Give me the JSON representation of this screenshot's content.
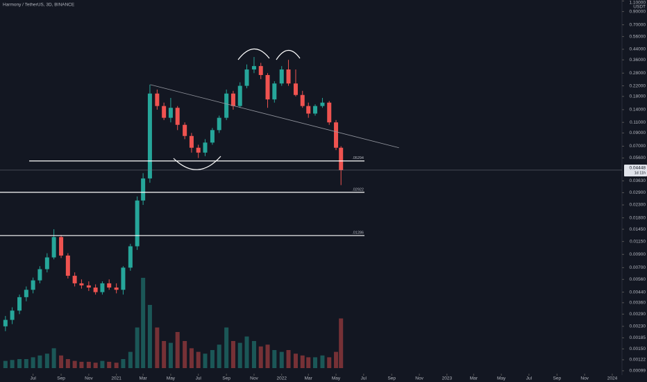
{
  "chart_data": {
    "type": "candlestick",
    "title": "Harmony / TetherUS, 3D, BINANCE",
    "currency": "USDT",
    "log": true,
    "up_color": "#26a69a",
    "down_color": "#ef5350",
    "x": [
      "2020-05-01",
      "2020-05-16",
      "2020-06-01",
      "2020-06-16",
      "2020-07-01",
      "2020-07-16",
      "2020-08-01",
      "2020-08-16",
      "2020-09-01",
      "2020-09-16",
      "2020-10-01",
      "2020-10-16",
      "2020-11-01",
      "2020-11-16",
      "2020-12-01",
      "2020-12-16",
      "2021-01-01",
      "2021-01-16",
      "2021-02-01",
      "2021-02-16",
      "2021-03-01",
      "2021-03-16",
      "2021-04-01",
      "2021-04-16",
      "2021-05-01",
      "2021-05-16",
      "2021-06-01",
      "2021-06-16",
      "2021-07-01",
      "2021-07-16",
      "2021-08-01",
      "2021-08-16",
      "2021-09-01",
      "2021-09-16",
      "2021-10-01",
      "2021-10-16",
      "2021-11-01",
      "2021-11-16",
      "2021-12-01",
      "2021-12-16",
      "2022-01-01",
      "2022-01-16",
      "2022-02-01",
      "2022-02-16",
      "2022-03-01",
      "2022-03-16",
      "2022-04-01",
      "2022-04-16",
      "2022-05-01",
      "2022-05-12"
    ],
    "open": [
      0.0023,
      0.0026,
      0.0031,
      0.004,
      0.0046,
      0.0055,
      0.0068,
      0.0085,
      0.0125,
      0.0088,
      0.006,
      0.0052,
      0.005,
      0.0048,
      0.0044,
      0.0052,
      0.0048,
      0.0046,
      0.007,
      0.0105,
      0.025,
      0.038,
      0.19,
      0.15,
      0.12,
      0.145,
      0.105,
      0.085,
      0.068,
      0.062,
      0.075,
      0.095,
      0.12,
      0.19,
      0.15,
      0.22,
      0.3,
      0.32,
      0.27,
      0.17,
      0.23,
      0.3,
      0.23,
      0.185,
      0.15,
      0.13,
      0.15,
      0.16,
      0.11,
      0.068
    ],
    "high": [
      0.0028,
      0.0033,
      0.0042,
      0.0049,
      0.0058,
      0.0072,
      0.0092,
      0.0145,
      0.013,
      0.0092,
      0.0064,
      0.0056,
      0.0054,
      0.0051,
      0.0054,
      0.0056,
      0.0052,
      0.0072,
      0.011,
      0.027,
      0.042,
      0.225,
      0.205,
      0.16,
      0.175,
      0.15,
      0.11,
      0.09,
      0.072,
      0.08,
      0.099,
      0.125,
      0.205,
      0.2,
      0.235,
      0.33,
      0.38,
      0.34,
      0.28,
      0.24,
      0.32,
      0.36,
      0.3,
      0.2,
      0.16,
      0.155,
      0.175,
      0.165,
      0.115,
      0.07
    ],
    "low": [
      0.0021,
      0.0024,
      0.0029,
      0.0037,
      0.0043,
      0.0052,
      0.0064,
      0.0082,
      0.0084,
      0.0057,
      0.0049,
      0.0047,
      0.0045,
      0.0042,
      0.0042,
      0.0046,
      0.0043,
      0.0042,
      0.0066,
      0.0098,
      0.023,
      0.035,
      0.14,
      0.115,
      0.11,
      0.095,
      0.08,
      0.062,
      0.056,
      0.058,
      0.072,
      0.09,
      0.115,
      0.14,
      0.145,
      0.21,
      0.28,
      0.25,
      0.145,
      0.16,
      0.22,
      0.22,
      0.18,
      0.145,
      0.12,
      0.125,
      0.145,
      0.105,
      0.065,
      0.0335
    ],
    "close": [
      0.0026,
      0.0031,
      0.004,
      0.0046,
      0.0055,
      0.0068,
      0.0085,
      0.0125,
      0.0088,
      0.006,
      0.0052,
      0.005,
      0.0048,
      0.0044,
      0.0052,
      0.0048,
      0.0046,
      0.007,
      0.0105,
      0.025,
      0.038,
      0.19,
      0.15,
      0.12,
      0.145,
      0.105,
      0.085,
      0.068,
      0.062,
      0.075,
      0.095,
      0.12,
      0.19,
      0.15,
      0.22,
      0.3,
      0.32,
      0.27,
      0.17,
      0.23,
      0.3,
      0.23,
      0.185,
      0.15,
      0.13,
      0.15,
      0.16,
      0.11,
      0.068,
      0.04448
    ],
    "volume": [
      8,
      9,
      10,
      10,
      12,
      14,
      16,
      22,
      14,
      10,
      8,
      7,
      7,
      6,
      8,
      7,
      6,
      10,
      18,
      45,
      100,
      70,
      45,
      30,
      28,
      40,
      30,
      22,
      18,
      16,
      20,
      26,
      45,
      30,
      28,
      35,
      30,
      24,
      26,
      20,
      18,
      20,
      16,
      14,
      12,
      12,
      14,
      12,
      18,
      55
    ],
    "levels": [
      {
        "value": 0.05294,
        "label": ".05294"
      },
      {
        "value": 0.02922,
        "label": ".02922"
      },
      {
        "value": 0.01286,
        "label": ".01286"
      }
    ],
    "trendline": {
      "x": [
        "2021-03-17",
        "2022-09-17"
      ],
      "values": [
        0.225,
        0.068
      ]
    },
    "last": {
      "value": 0.04448,
      "label": "0.04448"
    },
    "countdown": "1d 11h",
    "xlim": [
      "2020-04-19",
      "2024-01-21"
    ],
    "xticks": [
      {
        "value": "2020-07-01",
        "label": "Jul"
      },
      {
        "value": "2020-09-01",
        "label": "Sep"
      },
      {
        "value": "2020-11-01",
        "label": "Nov"
      },
      {
        "value": "2021-01-01",
        "label": "2021"
      },
      {
        "value": "2021-03-01",
        "label": "Mar"
      },
      {
        "value": "2021-05-01",
        "label": "May"
      },
      {
        "value": "2021-07-01",
        "label": "Jul"
      },
      {
        "value": "2021-09-01",
        "label": "Sep"
      },
      {
        "value": "2021-11-01",
        "label": "Nov"
      },
      {
        "value": "2022-01-01",
        "label": "2022"
      },
      {
        "value": "2022-03-01",
        "label": "Mar"
      },
      {
        "value": "2022-05-01",
        "label": "May"
      },
      {
        "value": "2022-07-01",
        "label": "Jul"
      },
      {
        "value": "2022-09-01",
        "label": "Sep"
      },
      {
        "value": "2022-11-01",
        "label": "Nov"
      },
      {
        "value": "2023-01-01",
        "label": "2023"
      },
      {
        "value": "2023-03-01",
        "label": "Mar"
      },
      {
        "value": "2023-05-01",
        "label": "May"
      },
      {
        "value": "2023-07-01",
        "label": "Jul"
      },
      {
        "value": "2023-09-01",
        "label": "Sep"
      },
      {
        "value": "2023-11-01",
        "label": "Nov"
      },
      {
        "value": "2024-01-01",
        "label": "2024"
      }
    ],
    "ylim": [
      0.00095,
      1.12
    ],
    "yticks": [
      {
        "value": 1.1,
        "label": "1.10000"
      },
      {
        "value": 0.9,
        "label": "0.90000"
      },
      {
        "value": 0.7,
        "label": "0.70000"
      },
      {
        "value": 0.56,
        "label": "0.56000"
      },
      {
        "value": 0.44,
        "label": "0.44000"
      },
      {
        "value": 0.36,
        "label": "0.36000"
      },
      {
        "value": 0.28,
        "label": "0.28000"
      },
      {
        "value": 0.22,
        "label": "0.22000"
      },
      {
        "value": 0.18,
        "label": "0.18000"
      },
      {
        "value": 0.14,
        "label": "0.14000"
      },
      {
        "value": 0.11,
        "label": "0.11000"
      },
      {
        "value": 0.09,
        "label": "0.09000"
      },
      {
        "value": 0.07,
        "label": "0.07000"
      },
      {
        "value": 0.056,
        "label": "0.05600"
      },
      {
        "value": 0.0363,
        "label": "0.03630"
      },
      {
        "value": 0.029,
        "label": "0.02900"
      },
      {
        "value": 0.023,
        "label": "0.02300"
      },
      {
        "value": 0.018,
        "label": "0.01800"
      },
      {
        "value": 0.0145,
        "label": "0.01450"
      },
      {
        "value": 0.0115,
        "label": "0.01150"
      },
      {
        "value": 0.009,
        "label": "0.00900"
      },
      {
        "value": 0.007,
        "label": "0.00700"
      },
      {
        "value": 0.0056,
        "label": "0.00560"
      },
      {
        "value": 0.0044,
        "label": "0.00440"
      },
      {
        "value": 0.0036,
        "label": "0.00360"
      },
      {
        "value": 0.0029,
        "label": "0.00290"
      },
      {
        "value": 0.0023,
        "label": "0.00230"
      },
      {
        "value": 0.00185,
        "label": "0.00185"
      },
      {
        "value": 0.0015,
        "label": "0.00150"
      },
      {
        "value": 0.00122,
        "label": "0.00122"
      },
      {
        "value": 0.00099,
        "label": "0.00099"
      }
    ]
  }
}
